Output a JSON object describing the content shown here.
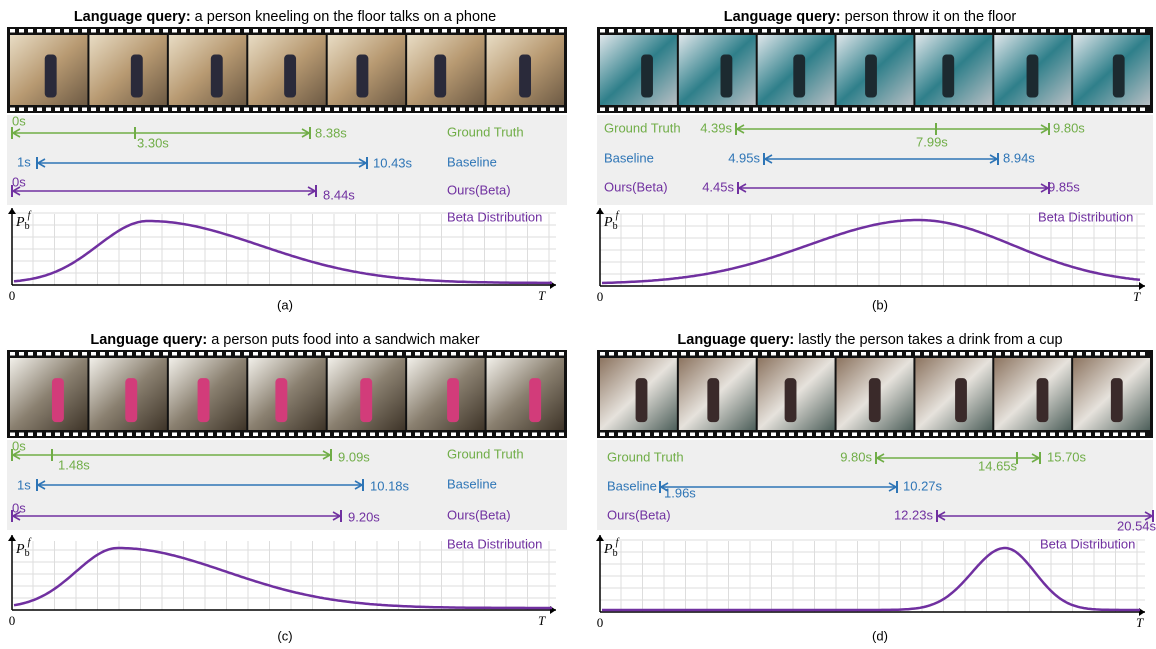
{
  "panels": [
    {
      "query_label": "Language query:",
      "query": "a person kneeling on the floor talks on a phone",
      "rows": [
        {
          "name": "Ground Truth",
          "start": "0s",
          "mid": "3.30s",
          "end": "8.38s"
        },
        {
          "name": "Baseline",
          "start": "1s",
          "end": "10.43s"
        },
        {
          "name": "Ours(Beta)",
          "start": "0s",
          "end": "8.44s"
        }
      ],
      "distribution": "Beta Distribution",
      "y_axis": {
        "base": "P",
        "sub": "b",
        "sup": "f"
      },
      "origin": "0",
      "x_axis": "T",
      "caption": "(a)"
    },
    {
      "query_label": "Language query:",
      "query": "person throw it on the floor",
      "rows": [
        {
          "name": "Ground Truth",
          "start": "4.39s",
          "mid": "7.99s",
          "end": "9.80s"
        },
        {
          "name": "Baseline",
          "start": "4.95s",
          "end": "8.94s"
        },
        {
          "name": "Ours(Beta)",
          "start": "4.45s",
          "end": "9.85s"
        }
      ],
      "distribution": "Beta Distribution",
      "y_axis": {
        "base": "P",
        "sub": "b",
        "sup": "f"
      },
      "origin": "0",
      "x_axis": "T",
      "caption": "(b)"
    },
    {
      "query_label": "Language query:",
      "query": "a person puts food into a sandwich maker",
      "rows": [
        {
          "name": "Ground Truth",
          "start": "0s",
          "mid": "1.48s",
          "end": "9.09s"
        },
        {
          "name": "Baseline",
          "start": "1s",
          "end": "10.18s"
        },
        {
          "name": "Ours(Beta)",
          "start": "0s",
          "end": "9.20s"
        }
      ],
      "distribution": "Beta Distribution",
      "y_axis": {
        "base": "P",
        "sub": "b",
        "sup": "f"
      },
      "origin": "0",
      "x_axis": "T",
      "caption": "(c)"
    },
    {
      "query_label": "Language query:",
      "query": "lastly the person takes a drink from a cup",
      "rows": [
        {
          "name": "Ground Truth",
          "start": "9.80s",
          "mid": "14.65s",
          "end": "15.70s"
        },
        {
          "name": "Baseline",
          "start": "1.96s",
          "end": "10.27s"
        },
        {
          "name": "Ours(Beta)",
          "start": "12.23s",
          "end": "20.54s"
        }
      ],
      "distribution": "Beta Distribution",
      "y_axis": {
        "base": "P",
        "sub": "b",
        "sup": "f"
      },
      "origin": "0",
      "x_axis": "T",
      "caption": "(d)"
    }
  ]
}
